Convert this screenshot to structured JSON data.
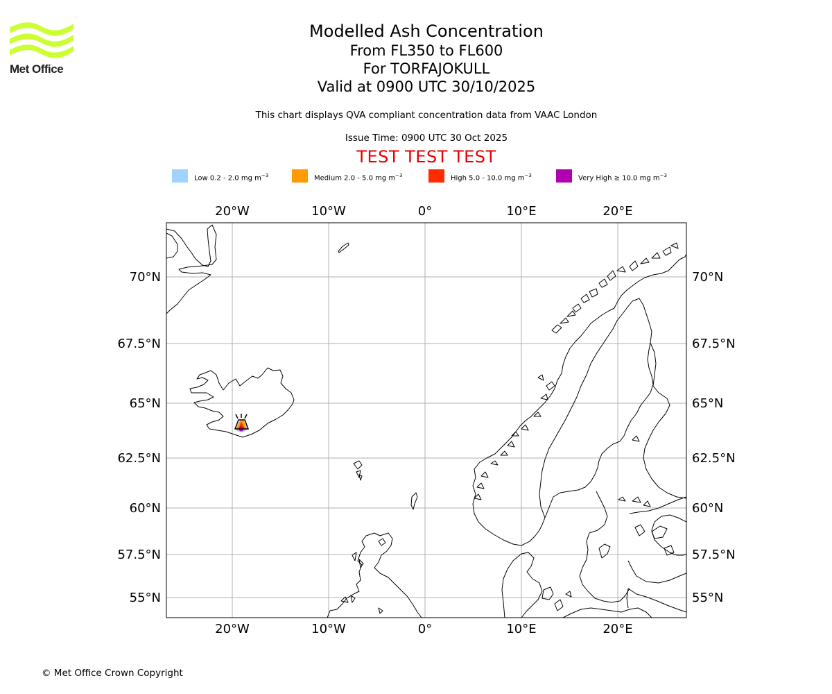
{
  "logo": {
    "text": "Met Office",
    "color": "#ccff33"
  },
  "title": {
    "line1": "Modelled Ash Concentration",
    "line2": "From FL350 to FL600",
    "line3": "For TORFAJOKULL",
    "line4": "Valid at 0900 UTC 30/10/2025"
  },
  "subtitle": "This chart displays QVA compliant concentration data from VAAC London",
  "issue_time": "Issue Time: 0900 UTC 30 Oct 2025",
  "test_banner": "TEST TEST TEST",
  "legend": [
    {
      "label": "Low 0.2 - 2.0 mg m",
      "color": "#a0d4ff"
    },
    {
      "label": "Medium 2.0 - 5.0 mg m",
      "color": "#ff9a00"
    },
    {
      "label": "High 5.0 - 10.0 mg m",
      "color": "#ff2a00"
    },
    {
      "label": "Very High ≥ 10.0 mg m",
      "color": "#b000b0"
    }
  ],
  "legend_unit_exp": "−3",
  "map": {
    "lon_ticks": [
      "20°W",
      "10°W",
      "0°",
      "10°E",
      "20°E"
    ],
    "lat_ticks": [
      "70°N",
      "67.5°N",
      "65°N",
      "62.5°N",
      "60°N",
      "57.5°N",
      "55°N"
    ],
    "volcano": "TORFAJOKULL"
  },
  "copyright": "© Met Office Crown Copyright"
}
